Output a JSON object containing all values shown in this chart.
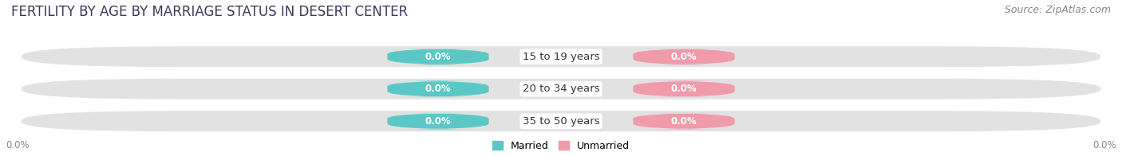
{
  "title": "FERTILITY BY AGE BY MARRIAGE STATUS IN DESERT CENTER",
  "source": "Source: ZipAtlas.com",
  "categories": [
    "15 to 19 years",
    "20 to 34 years",
    "35 to 50 years"
  ],
  "married_values": [
    0.0,
    0.0,
    0.0
  ],
  "unmarried_values": [
    0.0,
    0.0,
    0.0
  ],
  "married_color": "#5bc8c5",
  "unmarried_color": "#f09aaa",
  "bar_bg_color": "#e2e2e2",
  "title_fontsize": 12,
  "source_fontsize": 9,
  "label_fontsize": 8.5,
  "category_fontsize": 9.5,
  "legend_fontsize": 9,
  "axis_label_left": "0.0%",
  "axis_label_right": "0.0%",
  "bg_color": "#ffffff",
  "title_color": "#3a3a5c",
  "source_color": "#888888",
  "axis_tick_color": "#888888"
}
